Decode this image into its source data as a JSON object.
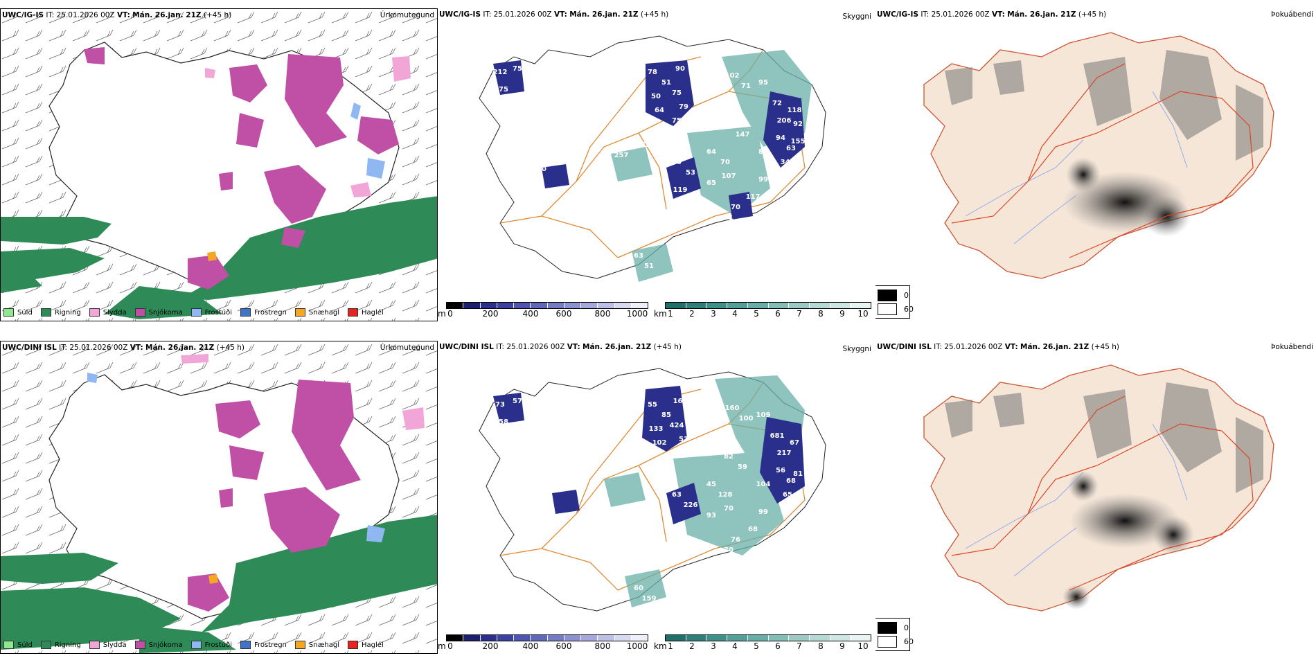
{
  "rows": [
    {
      "model": "UWC/IG-IS",
      "it_label": "IT:",
      "it_value": "25.01.2026 00Z",
      "vt_label": "VT:",
      "vt_value": "Mán. 26.jan. 21Z",
      "lead": "(+45 h)",
      "precip_label": "Úrkomutegund",
      "vis_label": "Skyggni",
      "fog_label": "Þokuábendi",
      "cloud_numbers": [
        "212",
        "75",
        "75",
        "78",
        "51",
        "90",
        "50",
        "75",
        "64",
        "79",
        "75",
        "102",
        "71",
        "95",
        "72",
        "206",
        "118",
        "110",
        "147",
        "94",
        "63",
        "85",
        "345",
        "155",
        "64",
        "70",
        "60",
        "53",
        "65",
        "107",
        "50",
        "99",
        "117",
        "70",
        "71",
        "63",
        "51",
        "70",
        "92",
        "60",
        "73",
        "257",
        "18",
        "119"
      ]
    },
    {
      "model": "UWC/DINI ISL",
      "it_label": "IT:",
      "it_value": "25.01.2026 00Z",
      "vt_label": "VT:",
      "vt_value": "Mán. 26.jan. 21Z",
      "lead": "(+45 h)",
      "precip_label": "Úrkomutegund",
      "vis_label": "Skyggni",
      "fog_label": "Þokuábendi",
      "cloud_numbers": [
        "73",
        "57",
        "58",
        "55",
        "85",
        "161",
        "133",
        "424",
        "102",
        "51",
        "99",
        "160",
        "100",
        "109",
        "681",
        "217",
        "67",
        "82",
        "59",
        "56",
        "68",
        "104",
        "65",
        "81",
        "45",
        "128",
        "63",
        "226",
        "93",
        "70",
        "94",
        "99",
        "68",
        "76",
        "70",
        "60",
        "159",
        "59"
      ]
    }
  ],
  "precip_legend": [
    {
      "label": "Súld",
      "color": "#8fe88f"
    },
    {
      "label": "Rigning",
      "color": "#2e8b57"
    },
    {
      "label": "Slydda",
      "color": "#f2a6d8"
    },
    {
      "label": "Snjókoma",
      "color": "#c04fa6"
    },
    {
      "label": "Frostúði",
      "color": "#8fb8f2"
    },
    {
      "label": "Frostregn",
      "color": "#3f74c9"
    },
    {
      "label": "Snæhagl",
      "color": "#f5a623"
    },
    {
      "label": "Haglél",
      "color": "#e8221c"
    }
  ],
  "cloudbase_bar": {
    "unit": "m",
    "ticks": [
      "0",
      "200",
      "400",
      "600",
      "800",
      "1000"
    ],
    "colors": [
      "#000000",
      "#1b1f6e",
      "#2a2f8c",
      "#3a41a0",
      "#4d55b0",
      "#6068bb",
      "#757cc6",
      "#8b91d1",
      "#a4a8dc",
      "#bdc0e7",
      "#d8daf2",
      "#eeeff9"
    ]
  },
  "visibility_bar": {
    "unit": "km",
    "ticks": [
      "1",
      "2",
      "3",
      "4",
      "5",
      "6",
      "7",
      "8",
      "9",
      "10"
    ],
    "colors": [
      "#1f6f6a",
      "#2f7f7a",
      "#3f8f89",
      "#54a098",
      "#6aafa7",
      "#82bdb6",
      "#9ccbc5",
      "#b5d9d4",
      "#cfe7e3",
      "#e8f4f2"
    ]
  },
  "fog_legend": [
    {
      "label": "0",
      "color": "#000000"
    },
    {
      "label": "60",
      "color": "#ffffff"
    }
  ]
}
